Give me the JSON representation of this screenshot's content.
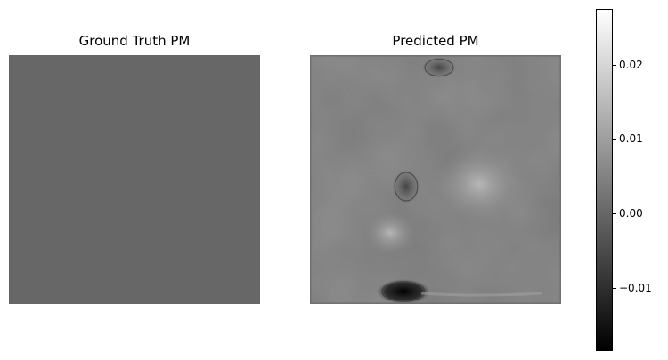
{
  "chart_data": [
    {
      "type": "heatmap",
      "title": "Ground Truth PM",
      "description_colormap": "gray",
      "field": "uniform",
      "value": 0.0,
      "vmin": -0.0185,
      "vmax": 0.0275
    },
    {
      "type": "heatmap",
      "title": "Predicted PM",
      "field": "noisy smooth field",
      "vmin": -0.0185,
      "vmax": 0.0275,
      "features": [
        {
          "value": -0.018
        },
        {
          "value": -0.006
        },
        {
          "value": -0.005
        },
        {
          "value": 0.012
        },
        {
          "value": 0.012
        }
      ]
    }
  ],
  "colorbar": {
    "ticks": [
      {
        "value": 0.02,
        "label": "0.02"
      },
      {
        "value": 0.01,
        "label": "0.01"
      },
      {
        "value": 0.0,
        "label": "0.00"
      },
      {
        "value": -0.01,
        "label": "−0.01"
      }
    ],
    "vmin": -0.0185,
    "vmax": 0.0275
  }
}
